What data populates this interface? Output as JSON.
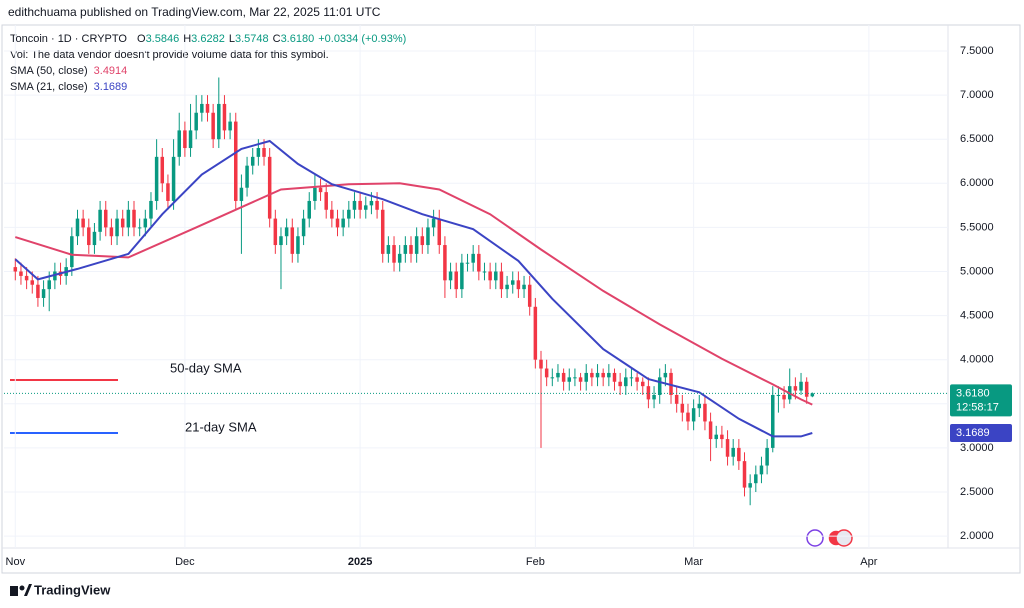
{
  "header": "edithchuama published on TradingView.com, Mar 22, 2025 11:01 UTC",
  "footer": "TradingView",
  "chart_data": {
    "type": "candlestick",
    "symbol": "Toncoin · 1D · CRYPTO",
    "quote": [
      "O",
      "3.5846",
      "H",
      "3.6282",
      "L",
      "3.5748",
      "C",
      "3.6180",
      "+0.0334 (+0.93%)"
    ],
    "volume_note": "Vol: The data vendor doesn't provide volume data for this symbol.",
    "countdown": "12:58:17",
    "up_color": "#089981",
    "down_color": "#f23645",
    "annotations": [
      {
        "text": "50-day SMA",
        "color": "#f23645"
      },
      {
        "text": "21-day SMA",
        "color": "#2962ff"
      }
    ],
    "xlim": [
      -2,
      165
    ],
    "xticks": [
      {
        "value": 0,
        "label": "Nov"
      },
      {
        "value": 30,
        "label": "Dec"
      },
      {
        "value": 61,
        "label": "2025"
      },
      {
        "value": 92,
        "label": "Feb"
      },
      {
        "value": 120,
        "label": "Mar"
      },
      {
        "value": 151,
        "label": "Apr"
      }
    ],
    "ylim": [
      1.865,
      7.795
    ],
    "yticks": [
      {
        "value": 2,
        "label": "2.0000"
      },
      {
        "value": 2.5,
        "label": "2.5000"
      },
      {
        "value": 3,
        "label": "3.0000"
      },
      {
        "value": 3.5,
        "label": "3.5000"
      },
      {
        "value": 4,
        "label": "4.0000"
      },
      {
        "value": 4.5,
        "label": "4.5000"
      },
      {
        "value": 5,
        "label": "5.0000"
      },
      {
        "value": 5.5,
        "label": "5.5000"
      },
      {
        "value": 6,
        "label": "6.0000"
      },
      {
        "value": 6.5,
        "label": "6.5000"
      },
      {
        "value": 7,
        "label": "7.0000"
      },
      {
        "value": 7.5,
        "label": "7.5000"
      }
    ],
    "grid": true,
    "candles": [
      [
        5.05,
        5.15,
        4.9,
        5.0
      ],
      [
        5.0,
        5.1,
        4.85,
        4.95
      ],
      [
        4.95,
        5.05,
        4.8,
        4.9
      ],
      [
        4.9,
        5.0,
        4.75,
        4.85
      ],
      [
        4.85,
        4.95,
        4.6,
        4.7
      ],
      [
        4.7,
        4.9,
        4.6,
        4.8
      ],
      [
        4.8,
        5.0,
        4.55,
        4.9
      ],
      [
        4.9,
        5.1,
        4.8,
        5.0
      ],
      [
        5.0,
        5.1,
        4.85,
        4.95
      ],
      [
        4.95,
        5.15,
        4.85,
        5.05
      ],
      [
        5.05,
        5.5,
        4.95,
        5.4
      ],
      [
        5.4,
        5.7,
        5.3,
        5.6
      ],
      [
        5.6,
        5.7,
        5.4,
        5.5
      ],
      [
        5.5,
        5.6,
        5.2,
        5.3
      ],
      [
        5.3,
        5.55,
        5.2,
        5.45
      ],
      [
        5.45,
        5.8,
        5.35,
        5.7
      ],
      [
        5.7,
        5.8,
        5.4,
        5.5
      ],
      [
        5.5,
        5.6,
        5.3,
        5.4
      ],
      [
        5.4,
        5.7,
        5.3,
        5.6
      ],
      [
        5.6,
        5.7,
        5.4,
        5.5
      ],
      [
        5.5,
        5.8,
        5.4,
        5.7
      ],
      [
        5.7,
        5.8,
        5.4,
        5.5
      ],
      [
        5.5,
        5.6,
        5.4,
        5.5
      ],
      [
        5.5,
        5.7,
        5.4,
        5.6
      ],
      [
        5.6,
        5.9,
        5.5,
        5.8
      ],
      [
        5.8,
        6.5,
        5.7,
        6.3
      ],
      [
        6.3,
        6.4,
        5.9,
        6.0
      ],
      [
        6.0,
        6.1,
        5.7,
        5.8
      ],
      [
        5.8,
        6.5,
        5.7,
        6.3
      ],
      [
        6.3,
        6.8,
        6.2,
        6.6
      ],
      [
        6.6,
        6.7,
        6.3,
        6.4
      ],
      [
        6.4,
        6.9,
        6.3,
        6.6
      ],
      [
        6.6,
        7.0,
        6.5,
        6.8
      ],
      [
        6.8,
        7.0,
        6.7,
        6.9
      ],
      [
        6.9,
        7.0,
        6.7,
        6.8
      ],
      [
        6.8,
        6.9,
        6.4,
        6.5
      ],
      [
        6.5,
        7.2,
        6.4,
        6.9
      ],
      [
        6.9,
        7.0,
        6.5,
        6.6
      ],
      [
        6.6,
        6.8,
        6.5,
        6.7
      ],
      [
        6.7,
        6.8,
        5.7,
        5.8
      ],
      [
        5.8,
        6.1,
        5.2,
        5.95
      ],
      [
        5.95,
        6.3,
        5.85,
        6.2
      ],
      [
        6.2,
        6.4,
        6.1,
        6.3
      ],
      [
        6.3,
        6.5,
        6.2,
        6.4
      ],
      [
        6.4,
        6.5,
        6.2,
        6.3
      ],
      [
        6.3,
        6.4,
        5.5,
        5.6
      ],
      [
        5.6,
        5.7,
        5.2,
        5.3
      ],
      [
        5.3,
        5.5,
        4.8,
        5.4
      ],
      [
        5.4,
        5.6,
        5.3,
        5.5
      ],
      [
        5.5,
        5.6,
        5.1,
        5.2
      ],
      [
        5.2,
        5.5,
        5.1,
        5.4
      ],
      [
        5.4,
        5.7,
        5.3,
        5.6
      ],
      [
        5.6,
        5.9,
        5.5,
        5.8
      ],
      [
        5.8,
        6.1,
        5.7,
        5.95
      ],
      [
        5.95,
        6.05,
        5.8,
        5.9
      ],
      [
        5.9,
        6.0,
        5.6,
        5.7
      ],
      [
        5.7,
        5.8,
        5.5,
        5.6
      ],
      [
        5.6,
        5.7,
        5.4,
        5.5
      ],
      [
        5.5,
        5.7,
        5.4,
        5.6
      ],
      [
        5.6,
        5.8,
        5.5,
        5.7
      ],
      [
        5.7,
        5.9,
        5.6,
        5.8
      ],
      [
        5.8,
        5.9,
        5.6,
        5.7
      ],
      [
        5.7,
        5.85,
        5.6,
        5.75
      ],
      [
        5.75,
        5.9,
        5.65,
        5.8
      ],
      [
        5.8,
        5.9,
        5.6,
        5.7
      ],
      [
        5.7,
        5.8,
        5.1,
        5.2
      ],
      [
        5.2,
        5.4,
        5.1,
        5.3
      ],
      [
        5.3,
        5.4,
        5.0,
        5.1
      ],
      [
        5.1,
        5.3,
        5.0,
        5.2
      ],
      [
        5.2,
        5.4,
        5.1,
        5.3
      ],
      [
        5.3,
        5.4,
        5.1,
        5.2
      ],
      [
        5.2,
        5.5,
        5.1,
        5.4
      ],
      [
        5.4,
        5.5,
        5.2,
        5.3
      ],
      [
        5.3,
        5.6,
        5.2,
        5.5
      ],
      [
        5.5,
        5.7,
        5.4,
        5.6
      ],
      [
        5.6,
        5.7,
        5.2,
        5.3
      ],
      [
        5.3,
        5.4,
        4.7,
        4.9
      ],
      [
        4.9,
        5.1,
        4.8,
        5.0
      ],
      [
        5.0,
        5.1,
        4.7,
        4.8
      ],
      [
        4.8,
        5.2,
        4.7,
        5.1
      ],
      [
        5.1,
        5.2,
        5.0,
        5.1
      ],
      [
        5.1,
        5.3,
        5.0,
        5.2
      ],
      [
        5.2,
        5.3,
        4.9,
        5.0
      ],
      [
        5.0,
        5.1,
        4.9,
        5.0
      ],
      [
        5.0,
        5.1,
        4.8,
        4.9
      ],
      [
        4.9,
        5.1,
        4.8,
        5.0
      ],
      [
        5.0,
        5.1,
        4.7,
        4.8
      ],
      [
        4.8,
        4.95,
        4.7,
        4.85
      ],
      [
        4.85,
        5.0,
        4.75,
        4.9
      ],
      [
        4.9,
        5.0,
        4.7,
        4.8
      ],
      [
        4.8,
        4.95,
        4.7,
        4.85
      ],
      [
        4.85,
        4.95,
        4.5,
        4.6
      ],
      [
        4.6,
        4.7,
        3.9,
        4.0
      ],
      [
        4.0,
        4.1,
        3.0,
        3.9
      ],
      [
        3.9,
        4.0,
        3.7,
        3.8
      ],
      [
        3.8,
        3.9,
        3.7,
        3.8
      ],
      [
        3.8,
        3.95,
        3.75,
        3.85
      ],
      [
        3.85,
        3.9,
        3.65,
        3.75
      ],
      [
        3.75,
        3.9,
        3.65,
        3.8
      ],
      [
        3.8,
        3.9,
        3.7,
        3.8
      ],
      [
        3.8,
        3.85,
        3.65,
        3.75
      ],
      [
        3.75,
        3.95,
        3.65,
        3.85
      ],
      [
        3.85,
        3.9,
        3.7,
        3.8
      ],
      [
        3.8,
        3.95,
        3.7,
        3.85
      ],
      [
        3.85,
        3.9,
        3.7,
        3.8
      ],
      [
        3.8,
        3.95,
        3.7,
        3.85
      ],
      [
        3.85,
        3.9,
        3.65,
        3.75
      ],
      [
        3.75,
        3.85,
        3.6,
        3.7
      ],
      [
        3.7,
        3.9,
        3.6,
        3.8
      ],
      [
        3.8,
        3.9,
        3.7,
        3.8
      ],
      [
        3.8,
        3.85,
        3.65,
        3.75
      ],
      [
        3.75,
        3.8,
        3.6,
        3.7
      ],
      [
        3.7,
        3.8,
        3.45,
        3.55
      ],
      [
        3.55,
        3.7,
        3.45,
        3.6
      ],
      [
        3.6,
        3.9,
        3.5,
        3.8
      ],
      [
        3.8,
        3.95,
        3.7,
        3.85
      ],
      [
        3.85,
        3.9,
        3.5,
        3.6
      ],
      [
        3.6,
        3.7,
        3.4,
        3.5
      ],
      [
        3.5,
        3.6,
        3.3,
        3.4
      ],
      [
        3.4,
        3.5,
        3.2,
        3.3
      ],
      [
        3.3,
        3.55,
        3.2,
        3.45
      ],
      [
        3.45,
        3.6,
        3.35,
        3.5
      ],
      [
        3.5,
        3.6,
        3.2,
        3.3
      ],
      [
        3.3,
        3.4,
        2.85,
        3.1
      ],
      [
        3.1,
        3.25,
        3.0,
        3.15
      ],
      [
        3.15,
        3.25,
        3.0,
        3.1
      ],
      [
        3.1,
        3.2,
        2.8,
        2.9
      ],
      [
        2.9,
        3.1,
        2.8,
        3.0
      ],
      [
        3.0,
        3.1,
        2.75,
        2.85
      ],
      [
        2.85,
        2.95,
        2.45,
        2.55
      ],
      [
        2.55,
        2.7,
        2.35,
        2.6
      ],
      [
        2.6,
        2.8,
        2.5,
        2.7
      ],
      [
        2.7,
        2.9,
        2.6,
        2.8
      ],
      [
        2.8,
        3.1,
        2.7,
        3.0
      ],
      [
        3.0,
        3.7,
        2.95,
        3.6
      ],
      [
        3.6,
        3.7,
        3.4,
        3.6
      ],
      [
        3.6,
        3.7,
        3.45,
        3.55
      ],
      [
        3.55,
        3.9,
        3.5,
        3.7
      ],
      [
        3.7,
        3.8,
        3.55,
        3.65
      ],
      [
        3.65,
        3.85,
        3.6,
        3.75
      ],
      [
        3.75,
        3.8,
        3.5,
        3.58
      ],
      [
        3.5846,
        3.6282,
        3.5748,
        3.618
      ]
    ],
    "series": [
      {
        "name": "SMA (50, close)",
        "color": "#e0436a",
        "x": [
          0,
          10,
          20,
          32,
          47,
          59,
          68,
          75,
          84,
          93,
          104,
          114,
          125,
          134,
          139,
          141
        ],
        "values": [
          5.39,
          5.19,
          5.16,
          5.5,
          5.93,
          5.99,
          6.0,
          5.93,
          5.65,
          5.25,
          4.78,
          4.4,
          4.01,
          3.72,
          3.55,
          3.4914
        ]
      },
      {
        "name": "SMA (21, close)",
        "color": "#3b44c4",
        "x": [
          0,
          4,
          11,
          20,
          26,
          33,
          40,
          45,
          50,
          56,
          65,
          72,
          81,
          89,
          95,
          104,
          112,
          121,
          128,
          134,
          139,
          141
        ],
        "values": [
          5.14,
          4.91,
          5.03,
          5.2,
          5.65,
          6.1,
          6.39,
          6.48,
          6.22,
          5.99,
          5.82,
          5.65,
          5.48,
          5.12,
          4.69,
          4.12,
          3.78,
          3.63,
          3.33,
          3.13,
          3.13,
          3.1689
        ]
      }
    ]
  }
}
